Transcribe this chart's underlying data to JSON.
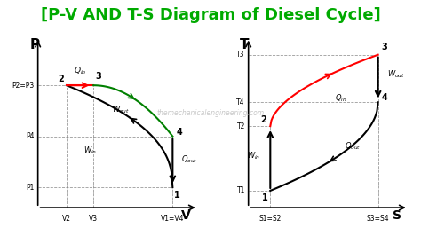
{
  "title": "[P-V AND T-S Diagram of Diesel Cycle]",
  "title_color": "#00aa00",
  "title_fontsize": 13,
  "bg_color": "#ffffff",
  "watermark": "themechanicalengineering.com",
  "pv": {
    "p1": [
      0.85,
      0.12
    ],
    "p2": [
      0.22,
      0.72
    ],
    "p3": [
      0.38,
      0.72
    ],
    "p4": [
      0.85,
      0.42
    ],
    "xlabel": "V",
    "ylabel": "P",
    "xtick_labels": [
      "V2",
      "V3",
      "V1=V4"
    ],
    "xtick_pos": [
      0.22,
      0.38,
      0.85
    ],
    "ytick_labels": [
      "P1",
      "P4",
      "P2=P3"
    ],
    "ytick_pos": [
      0.12,
      0.42,
      0.72
    ]
  },
  "ts": {
    "t1": [
      0.18,
      0.1
    ],
    "t2": [
      0.18,
      0.48
    ],
    "t3": [
      0.82,
      0.9
    ],
    "t4": [
      0.82,
      0.62
    ],
    "xlabel": "S",
    "ylabel": "T",
    "xtick_labels": [
      "S1=S2",
      "S3=S4"
    ],
    "xtick_pos": [
      0.18,
      0.82
    ],
    "ytick_labels": [
      "T1",
      "T2",
      "T4",
      "T3"
    ],
    "ytick_pos": [
      0.1,
      0.48,
      0.62,
      0.9
    ]
  }
}
